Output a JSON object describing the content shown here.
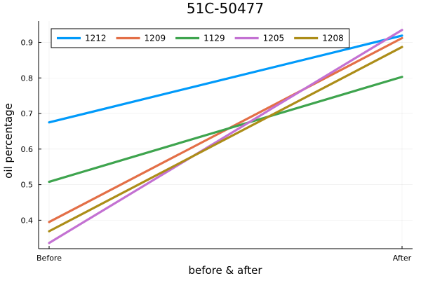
{
  "chart_data": {
    "type": "line",
    "title": "51C-50477",
    "xlabel": "before & after",
    "ylabel": "oil percentage",
    "categories": [
      "Before",
      "After"
    ],
    "ylim": [
      0.32,
      0.96
    ],
    "yticks": [
      0.4,
      0.5,
      0.6,
      0.7,
      0.8,
      0.9
    ],
    "ytick_labels": [
      "0.4",
      "0.5",
      "0.6",
      "0.7",
      "0.8",
      "0.9"
    ],
    "grid": true,
    "legend_position": "top-left",
    "legend_columns": 5,
    "series": [
      {
        "name": "1212",
        "color": "#009AFA",
        "values": [
          0.675,
          0.919
        ]
      },
      {
        "name": "1209",
        "color": "#E36F47",
        "values": [
          0.395,
          0.912
        ]
      },
      {
        "name": "1129",
        "color": "#3EA44E",
        "values": [
          0.508,
          0.803
        ]
      },
      {
        "name": "1205",
        "color": "#C371D2",
        "values": [
          0.336,
          0.935
        ]
      },
      {
        "name": "1208",
        "color": "#AC8D18",
        "values": [
          0.369,
          0.887
        ]
      }
    ]
  }
}
